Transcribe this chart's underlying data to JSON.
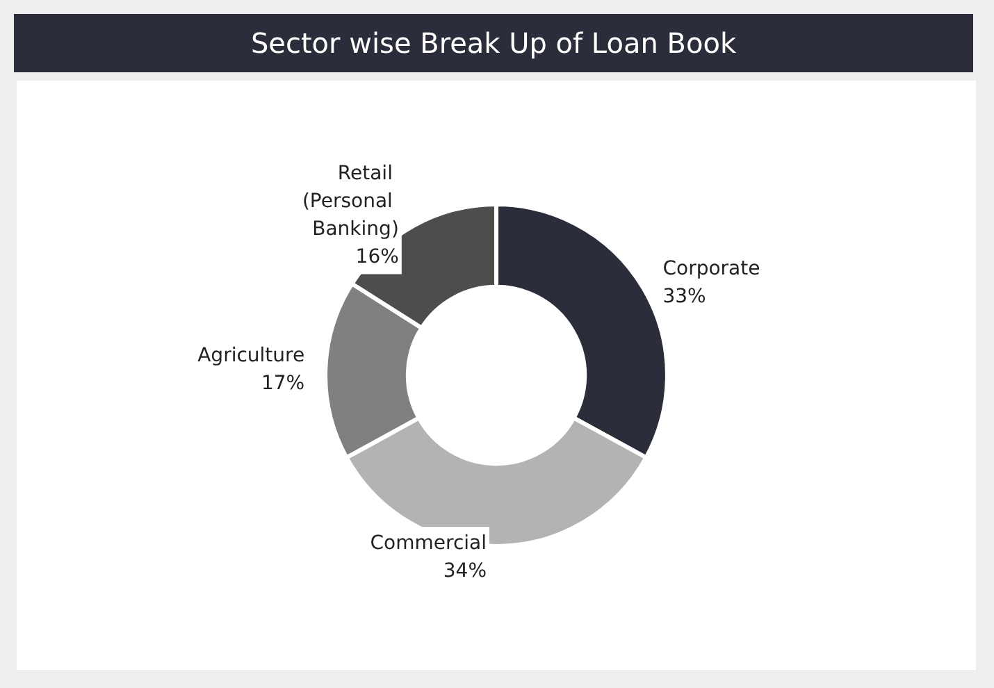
{
  "chart_data": {
    "type": "donut",
    "title": "Sector wise Break Up of Loan Book",
    "categories": [
      "Corporate",
      "Commercial",
      "Agriculture",
      "Retail (Personal Banking)"
    ],
    "values": [
      33,
      34,
      17,
      16
    ],
    "value_labels": [
      "33%",
      "34%",
      "17%",
      "16%"
    ],
    "colors": [
      "#2b2d3a",
      "#b3b3b3",
      "#808080",
      "#4d4d4d"
    ],
    "legend": false
  }
}
